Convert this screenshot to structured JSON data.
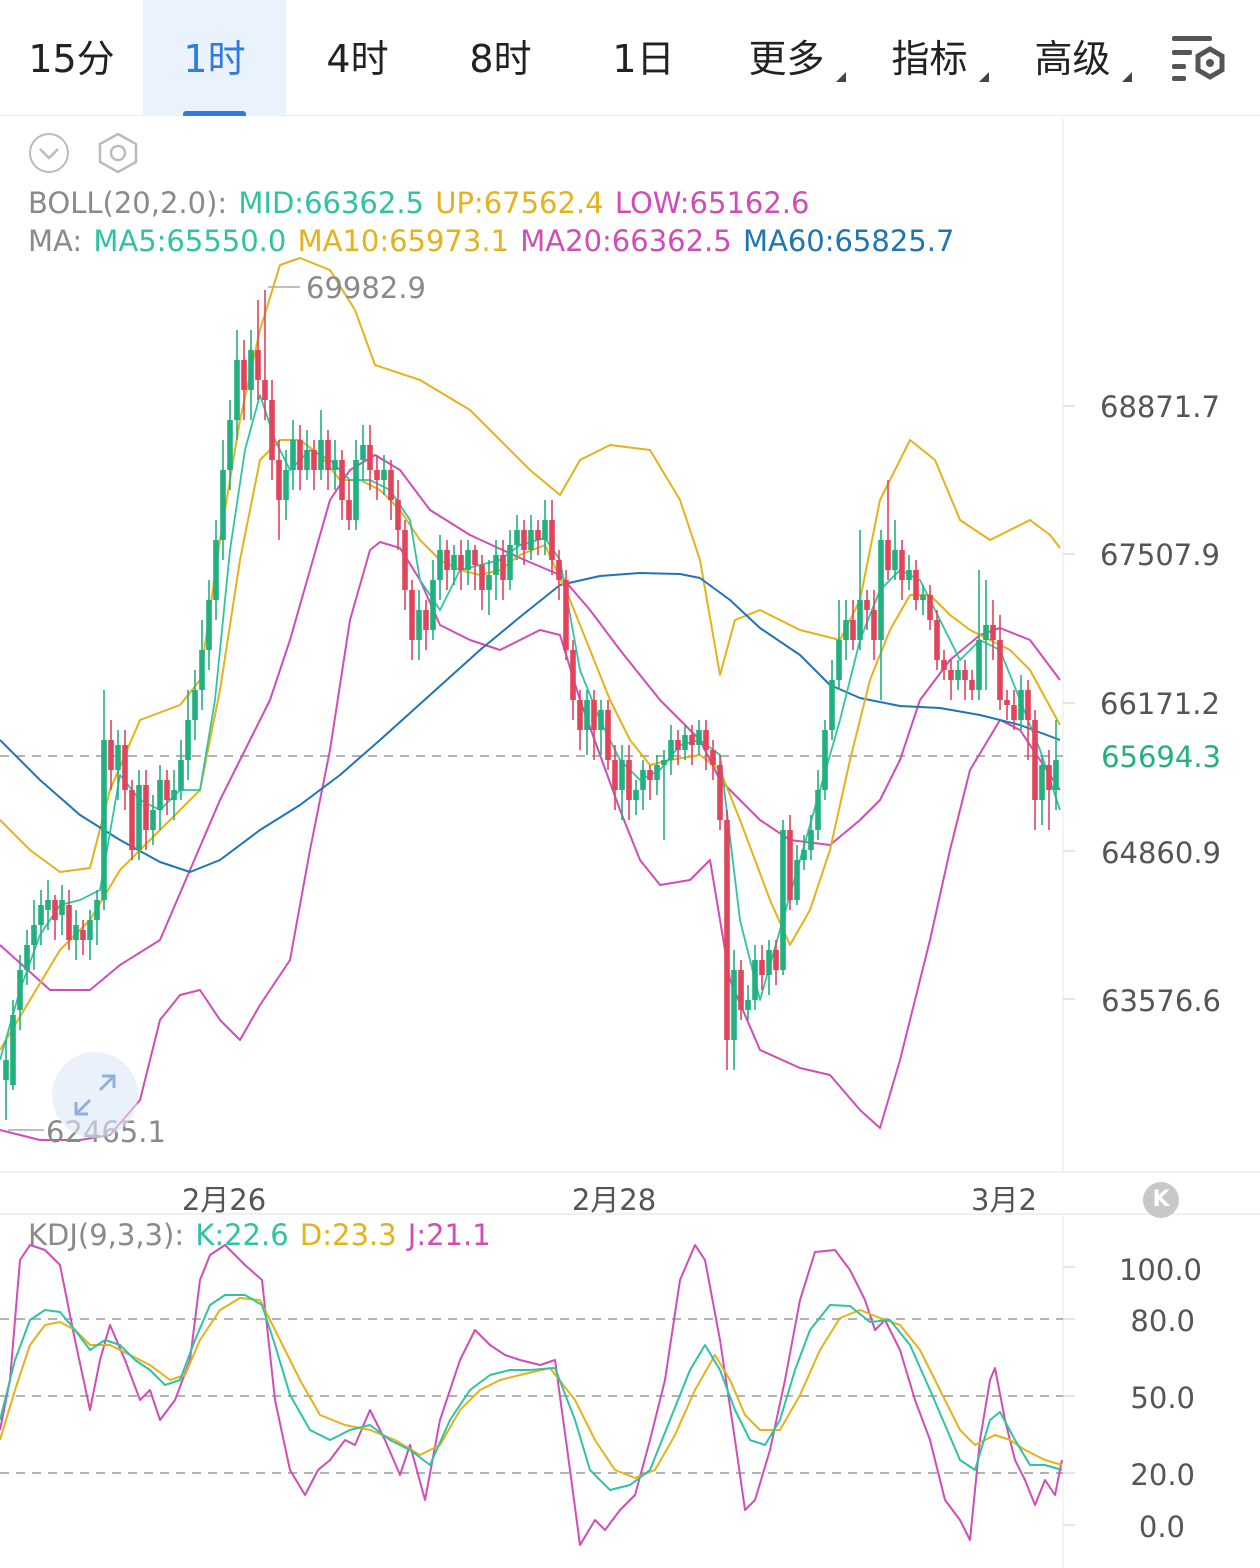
{
  "tabs": [
    {
      "label": "15分",
      "active": false,
      "dropdown": false
    },
    {
      "label": "1时",
      "active": true,
      "dropdown": false
    },
    {
      "label": "4时",
      "active": false,
      "dropdown": false
    },
    {
      "label": "8时",
      "active": false,
      "dropdown": false
    },
    {
      "label": "1日",
      "active": false,
      "dropdown": false
    },
    {
      "label": "更多",
      "active": false,
      "dropdown": true
    },
    {
      "label": "指标",
      "active": false,
      "dropdown": true
    },
    {
      "label": "高级",
      "active": false,
      "dropdown": true
    }
  ],
  "icons": {
    "settings": "chart-settings-icon",
    "collapse": "chevron-down-circle-icon",
    "hex": "hexagon-settings-icon",
    "expand": "expand-arrows-icon",
    "k": "k-line-icon"
  },
  "k_button_label": "K",
  "boll": {
    "prefix": "BOLL(20,2.0):",
    "mid": "MID:66362.5",
    "up": "UP:67562.4",
    "low": "LOW:65162.6"
  },
  "ma": {
    "prefix": "MA:",
    "ma5": "MA5:65550.0",
    "ma10": "MA10:65973.1",
    "ma20": "MA20:66362.5",
    "ma60": "MA60:65825.7"
  },
  "kdj": {
    "prefix": "KDJ(9,3,3):",
    "k": "K:22.6",
    "d": "D:23.3",
    "j": "J:21.1"
  },
  "colors": {
    "up": "#21b07e",
    "down": "#e0455c",
    "mid": "#2fc3a4",
    "boll_up": "#e5b21a",
    "boll_low": "#d14cb6",
    "ma5": "#2fc3a4",
    "ma10": "#e5b21a",
    "ma20": "#d14cb6",
    "ma60": "#1f74b4",
    "current": "#21b07e",
    "grey": "#8a8a8a",
    "accent": "#2f7be0"
  },
  "chart_data": [
    {
      "type": "candlestick",
      "y_ticks": [
        68871.7,
        67507.9,
        66171.2,
        64860.9,
        63576.6
      ],
      "y_labels": [
        "68871.7",
        "67507.9",
        "66171.2",
        "64860.9",
        "63576.6"
      ],
      "current_price": 65694.3,
      "current_label": "65694.3",
      "max_marker": {
        "value": 69982.9,
        "label": "69982.9"
      },
      "min_marker": {
        "value": 62465.1,
        "label": "62465.1"
      },
      "x_labels": [
        "2月26",
        "2月28",
        "3月2"
      ],
      "grid": false
    },
    {
      "type": "line",
      "y_ticks": [
        100.0,
        80.0,
        50.0,
        20.0,
        0.0
      ],
      "y_labels": [
        "100.0",
        "80.0",
        "50.0",
        "20.0",
        "0.0"
      ],
      "dashed_levels": [
        80,
        50,
        20
      ],
      "series": [
        {
          "name": "K",
          "last": 22.6
        },
        {
          "name": "D",
          "last": 23.3
        },
        {
          "name": "J",
          "last": 21.1
        }
      ]
    }
  ]
}
